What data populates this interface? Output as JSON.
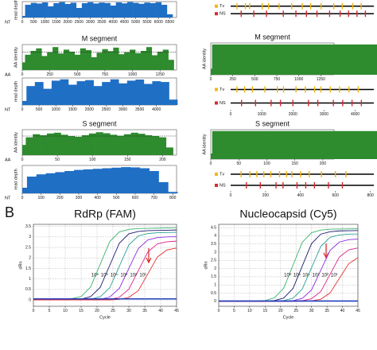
{
  "figure_label": "B",
  "chart_data": [
    {
      "type": "area",
      "y_label": "read depth",
      "x_axis_label": "NT",
      "color": "#1f6fc5",
      "x": [
        0,
        250,
        500,
        750,
        1000,
        1250,
        1500,
        1750,
        2000,
        2250,
        2500,
        2750,
        3000,
        3250,
        3500,
        3750,
        4000,
        4250,
        4500,
        4750,
        5000,
        5250,
        5500,
        5750,
        6000,
        6250,
        6500
      ],
      "values": [
        10,
        80,
        92,
        88,
        95,
        70,
        90,
        97,
        85,
        93,
        60,
        90,
        96,
        88,
        94,
        91,
        75,
        95,
        89,
        97,
        92,
        86,
        94,
        90,
        96,
        80,
        20
      ],
      "xlim": [
        0,
        6800
      ],
      "ylim": [
        0,
        100
      ],
      "xticks": [
        0,
        500,
        1000,
        1500,
        2000,
        2500,
        3000,
        3500,
        4000,
        4500,
        5000,
        5500,
        6000,
        6500
      ]
    },
    {
      "type": "variant-track",
      "xlim": [
        0,
        6800
      ],
      "series": [
        {
          "name": "Tv",
          "color": "#f2b705",
          "positions": [
            300,
            700,
            900,
            1500,
            1800,
            2300,
            2900,
            3400,
            3800,
            4300,
            4900,
            5300,
            5800,
            6200
          ]
        },
        {
          "name": "NS",
          "color": "#d9282f",
          "positions": [
            500,
            1100,
            1700,
            2500,
            3100,
            3600,
            4100,
            4700,
            5200,
            5600,
            6000,
            6400
          ]
        }
      ]
    },
    {
      "type": "area",
      "title": "M segment",
      "y_label": "AA identity",
      "x_axis_label": "AA",
      "color": "#2e8b2e",
      "hline": 70,
      "x": [
        0,
        50,
        100,
        150,
        200,
        250,
        300,
        350,
        400,
        450,
        500,
        550,
        600,
        650,
        700,
        750,
        800,
        850,
        900,
        950,
        1000,
        1050,
        1100,
        1150,
        1200,
        1250,
        1300,
        1350
      ],
      "values": [
        30,
        60,
        75,
        85,
        55,
        70,
        90,
        65,
        80,
        72,
        60,
        85,
        78,
        50,
        68,
        82,
        74,
        88,
        62,
        70,
        80,
        66,
        75,
        90,
        58,
        72,
        80,
        40
      ],
      "xlim": [
        0,
        1400
      ],
      "ylim": [
        0,
        100
      ],
      "xticks": [
        0,
        250,
        500,
        750,
        1000,
        1250
      ]
    },
    {
      "type": "area",
      "title": "M segment",
      "y_label": "AA identity",
      "color": "#2e8b2e",
      "x": [
        0,
        30,
        60,
        1350
      ],
      "values": [
        20,
        100,
        100,
        100
      ],
      "xlim": [
        0,
        1400
      ],
      "ylim": [
        0,
        105
      ],
      "xticks": [
        0,
        250,
        500,
        750,
        1000,
        1250
      ]
    },
    {
      "type": "area",
      "y_label": "read depth",
      "x_axis_label": "NT",
      "color": "#1f6fc5",
      "x": [
        0,
        250,
        500,
        750,
        1000,
        1250,
        1500,
        1750,
        2000,
        2250,
        2500,
        2750,
        3000,
        3250,
        3500,
        3750,
        4000,
        4250,
        4500
      ],
      "values": [
        15,
        70,
        85,
        60,
        90,
        95,
        75,
        88,
        92,
        70,
        85,
        95,
        80,
        90,
        94,
        78,
        88,
        85,
        20
      ],
      "xlim": [
        0,
        4600
      ],
      "ylim": [
        0,
        100
      ],
      "xticks": [
        0,
        500,
        1000,
        1500,
        2000,
        2500,
        3000,
        3500,
        4000
      ]
    },
    {
      "type": "variant-track",
      "xlim": [
        0,
        4600
      ],
      "xticks": [
        0,
        1000,
        2000,
        3000,
        4000
      ],
      "series": [
        {
          "name": "Tv",
          "color": "#f2b705",
          "positions": [
            200,
            450,
            700,
            1100,
            1500,
            1700,
            2100,
            2400,
            2700,
            2900,
            3200,
            3500,
            3800,
            4100
          ]
        },
        {
          "name": "NS",
          "color": "#d9282f",
          "positions": [
            350,
            800,
            1300,
            1600,
            2000,
            2500,
            2800,
            3300,
            3600,
            3900,
            4200
          ]
        }
      ]
    },
    {
      "type": "area",
      "title": "S segment",
      "y_label": "AA identity",
      "x_axis_label": "AA",
      "color": "#2e8b2e",
      "hline": 75,
      "x": [
        0,
        10,
        20,
        30,
        40,
        50,
        60,
        70,
        80,
        90,
        100,
        110,
        120,
        130,
        140,
        150,
        160,
        170,
        180,
        190,
        200,
        210
      ],
      "values": [
        40,
        70,
        82,
        78,
        85,
        88,
        80,
        75,
        72,
        78,
        85,
        90,
        86,
        80,
        76,
        82,
        88,
        84,
        78,
        75,
        70,
        30
      ],
      "xlim": [
        0,
        220
      ],
      "ylim": [
        0,
        100
      ],
      "xticks": [
        0,
        50,
        100,
        150,
        200
      ]
    },
    {
      "type": "area",
      "title": "S segment",
      "y_label": "AA identity",
      "color": "#2e8b2e",
      "x": [
        0,
        5,
        10,
        215
      ],
      "values": [
        20,
        100,
        100,
        100
      ],
      "xlim": [
        0,
        220
      ],
      "ylim": [
        0,
        105
      ],
      "xticks": [
        0,
        50,
        100,
        150,
        200
      ]
    },
    {
      "type": "area",
      "y_label": "read depth",
      "x_axis_label": "NT",
      "color": "#1f6fc5",
      "x": [
        0,
        50,
        100,
        150,
        200,
        250,
        300,
        350,
        400,
        450,
        500,
        550,
        600,
        650,
        700,
        750,
        800
      ],
      "values": [
        20,
        60,
        68,
        72,
        76,
        80,
        84,
        86,
        88,
        90,
        92,
        94,
        93,
        90,
        80,
        40,
        5
      ],
      "xlim": [
        0,
        820
      ],
      "ylim": [
        0,
        100
      ],
      "xticks": [
        0,
        100,
        200,
        300,
        400,
        500,
        600,
        700,
        800
      ]
    },
    {
      "type": "variant-track",
      "xlim": [
        0,
        820
      ],
      "xticks": [
        0,
        200,
        400,
        600,
        800
      ],
      "series": [
        {
          "name": "Tv",
          "color": "#f2b705",
          "positions": [
            60,
            110,
            150,
            190,
            230,
            280,
            320,
            350,
            400,
            450,
            520,
            600,
            660
          ]
        },
        {
          "name": "NS",
          "color": "#d9282f",
          "positions": [
            90,
            170,
            260,
            300,
            380,
            430,
            480,
            560,
            640
          ]
        }
      ]
    },
    {
      "type": "line",
      "title": "RdRp (FAM)",
      "x_label": "Cycle",
      "y_label": "dRn",
      "grid": true,
      "x": [
        0,
        5,
        10,
        15,
        18,
        21,
        24,
        27,
        30,
        33,
        36,
        39,
        42,
        45
      ],
      "xlim": [
        0,
        45
      ],
      "ylim": [
        -0.3,
        3.6
      ],
      "xticks": [
        0,
        5,
        10,
        15,
        20,
        25,
        30,
        35,
        40,
        45
      ],
      "yticks": [
        0,
        0.5,
        1,
        1.5,
        2,
        2.5,
        3,
        3.5
      ],
      "series": [
        {
          "name": "10⁶",
          "color": "#3cb371",
          "values": [
            0,
            0,
            0,
            0.16,
            0.62,
            1.7,
            2.78,
            3.24,
            3.36,
            3.4,
            3.41,
            3.42,
            3.43,
            3.44
          ]
        },
        {
          "name": "10⁵",
          "color": "#1b1b6e",
          "values": [
            0,
            0,
            0,
            0.04,
            0.16,
            0.6,
            1.65,
            2.7,
            3.15,
            3.26,
            3.3,
            3.31,
            3.32,
            3.33
          ]
        },
        {
          "name": "10⁴",
          "color": "#2aa198",
          "values": [
            0,
            0,
            0,
            0,
            0.04,
            0.15,
            0.58,
            1.6,
            2.62,
            3.05,
            3.16,
            3.2,
            3.21,
            3.22
          ]
        },
        {
          "name": "10³",
          "color": "#8a2be2",
          "values": [
            0,
            0,
            0,
            0,
            0,
            0.03,
            0.14,
            0.55,
            1.5,
            2.45,
            2.86,
            2.97,
            3.0,
            3.01
          ]
        },
        {
          "name": "10²",
          "color": "#e0218a",
          "values": [
            0,
            0,
            0,
            0,
            0,
            0,
            0.03,
            0.13,
            0.51,
            1.4,
            2.29,
            2.67,
            2.77,
            2.8
          ]
        },
        {
          "name": "10¹",
          "color": "#e63030",
          "values": [
            0,
            0,
            0,
            0,
            0,
            0,
            0,
            0.03,
            0.12,
            0.45,
            1.25,
            2.05,
            2.38,
            2.47
          ]
        },
        {
          "color": "#1f3fbf",
          "values": [
            0.05,
            0.05,
            0.05,
            0.05,
            0.05,
            0.05,
            0.05,
            0.05,
            0.05,
            0.05,
            0.05,
            0.05,
            0.05,
            0.05
          ]
        }
      ]
    },
    {
      "type": "line",
      "title": "Nucleocapsid (Cy5)",
      "x_label": "Cycle",
      "y_label": "dRn",
      "grid": true,
      "x": [
        0,
        5,
        10,
        15,
        18,
        21,
        24,
        27,
        30,
        33,
        36,
        39,
        42,
        45
      ],
      "xlim": [
        0,
        45
      ],
      "ylim": [
        -0.3,
        4.7
      ],
      "xticks": [
        0,
        5,
        10,
        15,
        20,
        25,
        30,
        35,
        40,
        45
      ],
      "yticks": [
        0,
        0.5,
        1,
        1.5,
        2,
        2.5,
        3,
        3.5,
        4,
        4.5
      ],
      "series": [
        {
          "name": "10⁶",
          "color": "#3cb371",
          "values": [
            0,
            0,
            0,
            0.05,
            0.21,
            0.8,
            2.2,
            3.6,
            4.19,
            4.35,
            4.4,
            4.41,
            4.42,
            4.43
          ]
        },
        {
          "name": "10⁵",
          "color": "#1b1b6e",
          "values": [
            0,
            0,
            0,
            0,
            0.05,
            0.2,
            0.78,
            2.15,
            3.52,
            4.1,
            4.25,
            4.3,
            4.31,
            4.32
          ]
        },
        {
          "name": "10⁴",
          "color": "#2aa198",
          "values": [
            0,
            0,
            0,
            0,
            0,
            0.05,
            0.19,
            0.75,
            2.05,
            3.35,
            3.91,
            4.05,
            4.1,
            4.11
          ]
        },
        {
          "name": "10³",
          "color": "#8a2be2",
          "values": [
            0,
            0,
            0,
            0,
            0,
            0,
            0.04,
            0.18,
            0.69,
            1.9,
            3.11,
            3.62,
            3.76,
            3.8
          ]
        },
        {
          "name": "10²",
          "color": "#e0218a",
          "values": [
            0,
            0,
            0,
            0,
            0,
            0,
            0,
            0.04,
            0.16,
            0.6,
            1.65,
            2.7,
            3.14,
            3.26
          ]
        },
        {
          "name": "10¹",
          "color": "#e63030",
          "values": [
            0,
            0,
            0,
            0,
            0,
            0,
            0,
            0,
            0.03,
            0.13,
            0.51,
            1.4,
            2.29,
            2.67
          ]
        },
        {
          "color": "#1f3fbf",
          "values": [
            0.02,
            0.02,
            0.02,
            0.02,
            0.02,
            0.02,
            0.02,
            0.02,
            0.02,
            0.02,
            0.02,
            0.02,
            0.02,
            0.02
          ]
        }
      ]
    }
  ]
}
